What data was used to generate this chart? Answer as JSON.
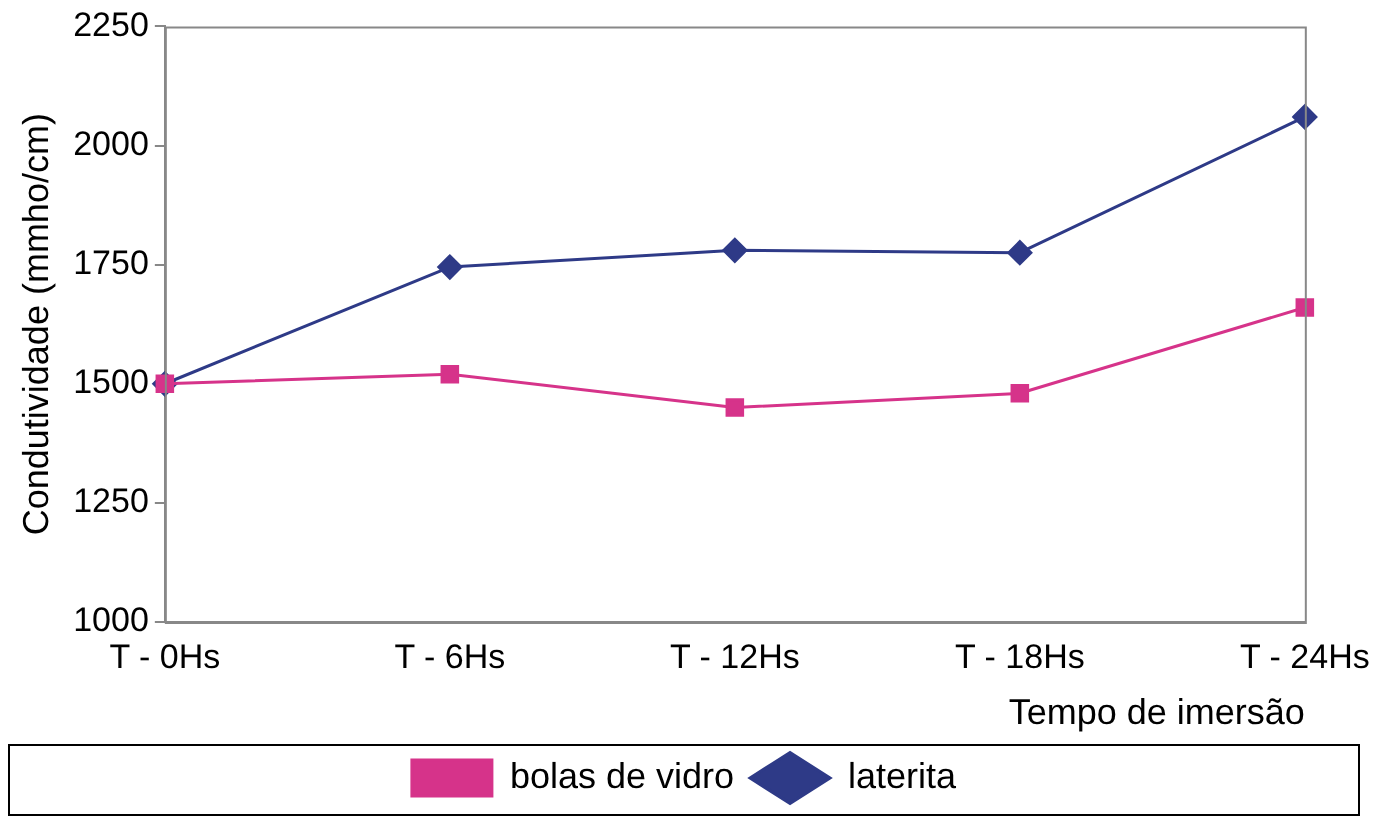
{
  "chart_data": {
    "type": "line",
    "xlabel": "Tempo de imersão",
    "ylabel": "Condutividade (mmho/cm)",
    "categories": [
      "T - 0Hs",
      "T - 6Hs",
      "T - 12Hs",
      "T - 18Hs",
      "T - 24Hs"
    ],
    "series": [
      {
        "name": "laterita",
        "color": "#2e3a87",
        "marker": "diamond",
        "values": [
          1500,
          1745,
          1780,
          1775,
          2060
        ]
      },
      {
        "name": "bolas de vidro",
        "color": "#d6338a",
        "marker": "square",
        "values": [
          1500,
          1520,
          1450,
          1480,
          1660
        ]
      }
    ],
    "ylim": [
      1000,
      2250
    ],
    "yticks": [
      1000,
      1250,
      1500,
      1750,
      2000,
      2250
    ],
    "grid": false,
    "legend": "bottom"
  }
}
